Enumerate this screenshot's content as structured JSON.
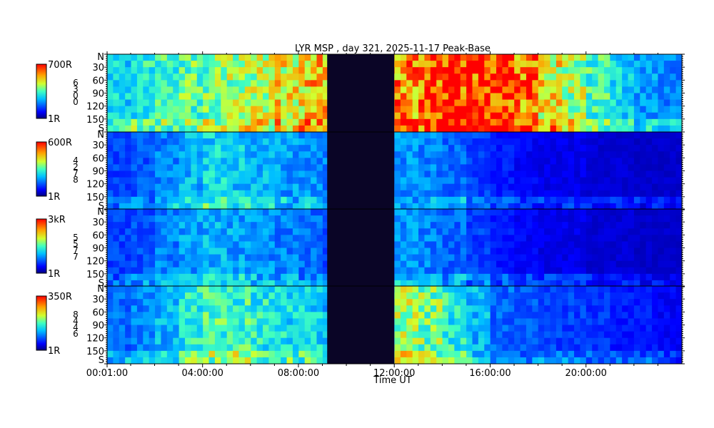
{
  "chart_data": {
    "type": "heatmap",
    "title": "LYR MSP , day 321, 2025-11-17 Peak-Base",
    "xlabel": "Time UT",
    "x_ticks": [
      "00:01:00",
      "04:00:00",
      "08:00:00",
      "12:00:00",
      "16:00:00",
      "20:00:00"
    ],
    "x_range_hours": [
      0.017,
      24
    ],
    "data_gap_hours": [
      9.2,
      12.0
    ],
    "y_tick_labels": [
      "N",
      "30",
      "60",
      "90",
      "120",
      "150",
      "S"
    ],
    "y_range_deg": [
      0,
      180
    ],
    "colormap": "jet",
    "panels": [
      {
        "channel_digits": [
          "6",
          "3",
          "0",
          "0"
        ],
        "cbar_max": "700R",
        "cbar_min": "1R",
        "intensity_profile": [
          0.4,
          0.45,
          0.48,
          0.52,
          0.55,
          0.6,
          0.62,
          0.7,
          0.75,
          0.8,
          0.85,
          0.85,
          0.82,
          0.9,
          0.95,
          0.95,
          0.92,
          0.85,
          0.7,
          0.6,
          0.5,
          0.4,
          0.32,
          0.28
        ]
      },
      {
        "channel_digits": [
          "4",
          "2",
          "7",
          "8"
        ],
        "cbar_max": "600R",
        "cbar_min": "1R",
        "intensity_profile": [
          0.2,
          0.22,
          0.28,
          0.35,
          0.4,
          0.38,
          0.35,
          0.32,
          0.3,
          0.28,
          0.25,
          0.25,
          0.3,
          0.28,
          0.25,
          0.2,
          0.15,
          0.12,
          0.1,
          0.1,
          0.08,
          0.08,
          0.07,
          0.07
        ]
      },
      {
        "channel_digits": [
          "5",
          "5",
          "7",
          "7"
        ],
        "cbar_max": "3kR",
        "cbar_min": "1R",
        "intensity_profile": [
          0.2,
          0.22,
          0.28,
          0.32,
          0.35,
          0.33,
          0.3,
          0.28,
          0.25,
          0.22,
          0.2,
          0.2,
          0.3,
          0.28,
          0.25,
          0.2,
          0.15,
          0.12,
          0.1,
          0.1,
          0.08,
          0.08,
          0.07,
          0.07
        ]
      },
      {
        "channel_digits": [
          "8",
          "4",
          "4",
          "6"
        ],
        "cbar_max": "350R",
        "cbar_min": "1R",
        "intensity_profile": [
          0.25,
          0.28,
          0.35,
          0.45,
          0.5,
          0.48,
          0.45,
          0.42,
          0.4,
          0.35,
          0.3,
          0.3,
          0.6,
          0.55,
          0.45,
          0.35,
          0.25,
          0.22,
          0.2,
          0.2,
          0.18,
          0.15,
          0.15,
          0.12
        ]
      }
    ],
    "grid": false,
    "legend": "none"
  }
}
